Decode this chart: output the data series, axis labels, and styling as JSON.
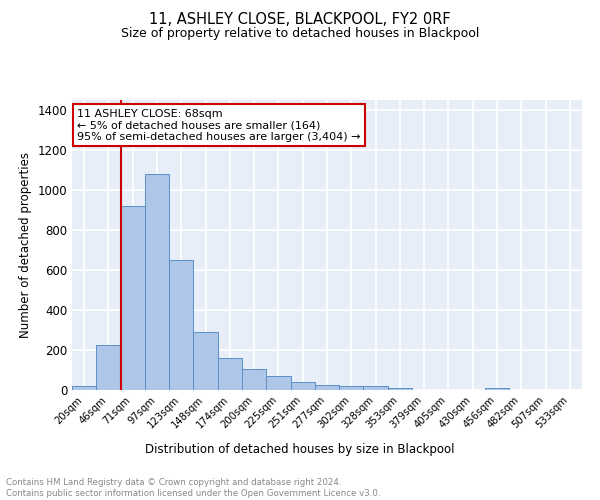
{
  "title": "11, ASHLEY CLOSE, BLACKPOOL, FY2 0RF",
  "subtitle": "Size of property relative to detached houses in Blackpool",
  "xlabel": "Distribution of detached houses by size in Blackpool",
  "ylabel": "Number of detached properties",
  "bar_labels": [
    "20sqm",
    "46sqm",
    "71sqm",
    "97sqm",
    "123sqm",
    "148sqm",
    "174sqm",
    "200sqm",
    "225sqm",
    "251sqm",
    "277sqm",
    "302sqm",
    "328sqm",
    "353sqm",
    "379sqm",
    "405sqm",
    "430sqm",
    "456sqm",
    "482sqm",
    "507sqm",
    "533sqm"
  ],
  "bar_values": [
    18,
    225,
    920,
    1080,
    650,
    290,
    158,
    103,
    70,
    38,
    25,
    22,
    18,
    12,
    0,
    0,
    0,
    12,
    0,
    0,
    0
  ],
  "bar_color": "#aec6e8",
  "bar_edge_color": "#5b8fc9",
  "ylim": [
    0,
    1450
  ],
  "yticks": [
    0,
    200,
    400,
    600,
    800,
    1000,
    1200,
    1400
  ],
  "property_label": "11 ASHLEY CLOSE: 68sqm",
  "annotation_line1": "← 5% of detached houses are smaller (164)",
  "annotation_line2": "95% of semi-detached houses are larger (3,404) →",
  "vline_index": 2,
  "vline_color": "#cc0000",
  "box_edge_color": "#cc0000",
  "footer_line1": "Contains HM Land Registry data © Crown copyright and database right 2024.",
  "footer_line2": "Contains public sector information licensed under the Open Government Licence v3.0.",
  "background_color": "#e8eef7",
  "grid_color": "#ffffff",
  "fig_width": 6.0,
  "fig_height": 5.0,
  "dpi": 100
}
